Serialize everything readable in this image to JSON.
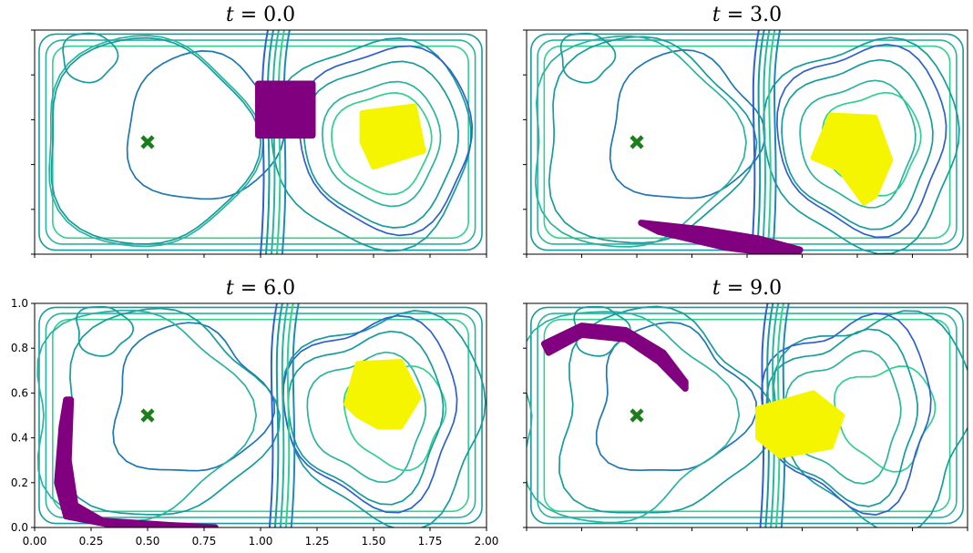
{
  "chart_data": [
    {
      "type": "contour",
      "title": "t = 0.0",
      "title_var": "t",
      "title_value": "0.0",
      "xlim": [
        0,
        2
      ],
      "ylim": [
        0,
        1
      ],
      "xticks": [
        0.0,
        0.25,
        0.5,
        0.75,
        1.0,
        1.25,
        1.5,
        1.75,
        2.0
      ],
      "yticks": [
        0.0,
        0.2,
        0.4,
        0.6,
        0.8,
        1.0
      ],
      "show_xtick_labels": false,
      "show_ytick_labels": false,
      "marker": {
        "shape": "x",
        "x": 0.5,
        "y": 0.5,
        "color": "#1a7f1a"
      },
      "purple_region": [
        [
          0.99,
          0.76
        ],
        [
          1.23,
          0.76
        ],
        [
          1.23,
          0.53
        ],
        [
          0.99,
          0.53
        ]
      ],
      "yellow_region": [
        [
          1.45,
          0.63
        ],
        [
          1.68,
          0.66
        ],
        [
          1.72,
          0.46
        ],
        [
          1.5,
          0.39
        ],
        [
          1.45,
          0.5
        ]
      ]
    },
    {
      "type": "contour",
      "title": "t = 3.0",
      "title_var": "t",
      "title_value": "3.0",
      "xlim": [
        0,
        2
      ],
      "ylim": [
        0,
        1
      ],
      "xticks": [
        0.0,
        0.25,
        0.5,
        0.75,
        1.0,
        1.25,
        1.5,
        1.75,
        2.0
      ],
      "yticks": [
        0.0,
        0.2,
        0.4,
        0.6,
        0.8,
        1.0
      ],
      "show_xtick_labels": false,
      "show_ytick_labels": false,
      "marker": {
        "shape": "x",
        "x": 0.5,
        "y": 0.5,
        "color": "#1a7f1a"
      },
      "purple_region": [
        [
          0.52,
          0.14
        ],
        [
          0.8,
          0.11
        ],
        [
          1.05,
          0.07
        ],
        [
          1.24,
          0.02
        ],
        [
          1.22,
          -0.01
        ],
        [
          0.9,
          0.03
        ],
        [
          0.6,
          0.1
        ]
      ],
      "yellow_region": [
        [
          1.38,
          0.62
        ],
        [
          1.58,
          0.61
        ],
        [
          1.65,
          0.42
        ],
        [
          1.58,
          0.26
        ],
        [
          1.53,
          0.23
        ],
        [
          1.42,
          0.38
        ],
        [
          1.3,
          0.43
        ]
      ]
    },
    {
      "type": "contour",
      "title": "t = 6.0",
      "title_var": "t",
      "title_value": "6.0",
      "xlim": [
        0,
        2
      ],
      "ylim": [
        0,
        1
      ],
      "xticks": [
        0.0,
        0.25,
        0.5,
        0.75,
        1.0,
        1.25,
        1.5,
        1.75,
        2.0
      ],
      "yticks": [
        0.0,
        0.2,
        0.4,
        0.6,
        0.8,
        1.0
      ],
      "xtick_labels": [
        "0.00",
        "0.25",
        "0.50",
        "0.75",
        "1.00",
        "1.25",
        "1.50",
        "1.75",
        "2.00"
      ],
      "ytick_labels": [
        "0.0",
        "0.2",
        "0.4",
        "0.6",
        "0.8",
        "1.0"
      ],
      "show_xtick_labels": true,
      "show_ytick_labels": true,
      "marker": {
        "shape": "x",
        "x": 0.5,
        "y": 0.5,
        "color": "#1a7f1a"
      },
      "purple_region": [
        [
          0.14,
          0.57
        ],
        [
          0.16,
          0.57
        ],
        [
          0.15,
          0.3
        ],
        [
          0.18,
          0.1
        ],
        [
          0.3,
          0.03
        ],
        [
          0.6,
          0.01
        ],
        [
          0.8,
          0.0
        ],
        [
          0.4,
          0.0
        ],
        [
          0.14,
          0.05
        ],
        [
          0.1,
          0.2
        ],
        [
          0.12,
          0.45
        ]
      ],
      "yellow_region": [
        [
          1.43,
          0.73
        ],
        [
          1.62,
          0.74
        ],
        [
          1.7,
          0.58
        ],
        [
          1.62,
          0.45
        ],
        [
          1.52,
          0.45
        ],
        [
          1.43,
          0.5
        ],
        [
          1.38,
          0.55
        ]
      ]
    },
    {
      "type": "contour",
      "title": "t = 9.0",
      "title_var": "t",
      "title_value": "9.0",
      "xlim": [
        0,
        2
      ],
      "ylim": [
        0,
        1
      ],
      "xticks": [
        0.0,
        0.25,
        0.5,
        0.75,
        1.0,
        1.25,
        1.5,
        1.75,
        2.0
      ],
      "yticks": [
        0.0,
        0.2,
        0.4,
        0.6,
        0.8,
        1.0
      ],
      "show_xtick_labels": false,
      "show_ytick_labels": false,
      "marker": {
        "shape": "x",
        "x": 0.5,
        "y": 0.5,
        "color": "#1a7f1a"
      },
      "purple_region": [
        [
          0.08,
          0.82
        ],
        [
          0.25,
          0.9
        ],
        [
          0.45,
          0.88
        ],
        [
          0.62,
          0.78
        ],
        [
          0.72,
          0.65
        ],
        [
          0.72,
          0.62
        ],
        [
          0.6,
          0.74
        ],
        [
          0.45,
          0.84
        ],
        [
          0.25,
          0.86
        ],
        [
          0.1,
          0.78
        ]
      ],
      "yellow_region": [
        [
          1.05,
          0.53
        ],
        [
          1.3,
          0.6
        ],
        [
          1.43,
          0.5
        ],
        [
          1.38,
          0.36
        ],
        [
          1.15,
          0.32
        ],
        [
          1.05,
          0.4
        ]
      ]
    }
  ],
  "colors": {
    "marker": "#1a7f1a",
    "purple": "#800080",
    "yellow": "#f5f500",
    "contour_palette": [
      "#1f77b4",
      "#2f5fd0",
      "#169c9c",
      "#2bb3a0",
      "#30d090",
      "#1e88b8"
    ]
  }
}
